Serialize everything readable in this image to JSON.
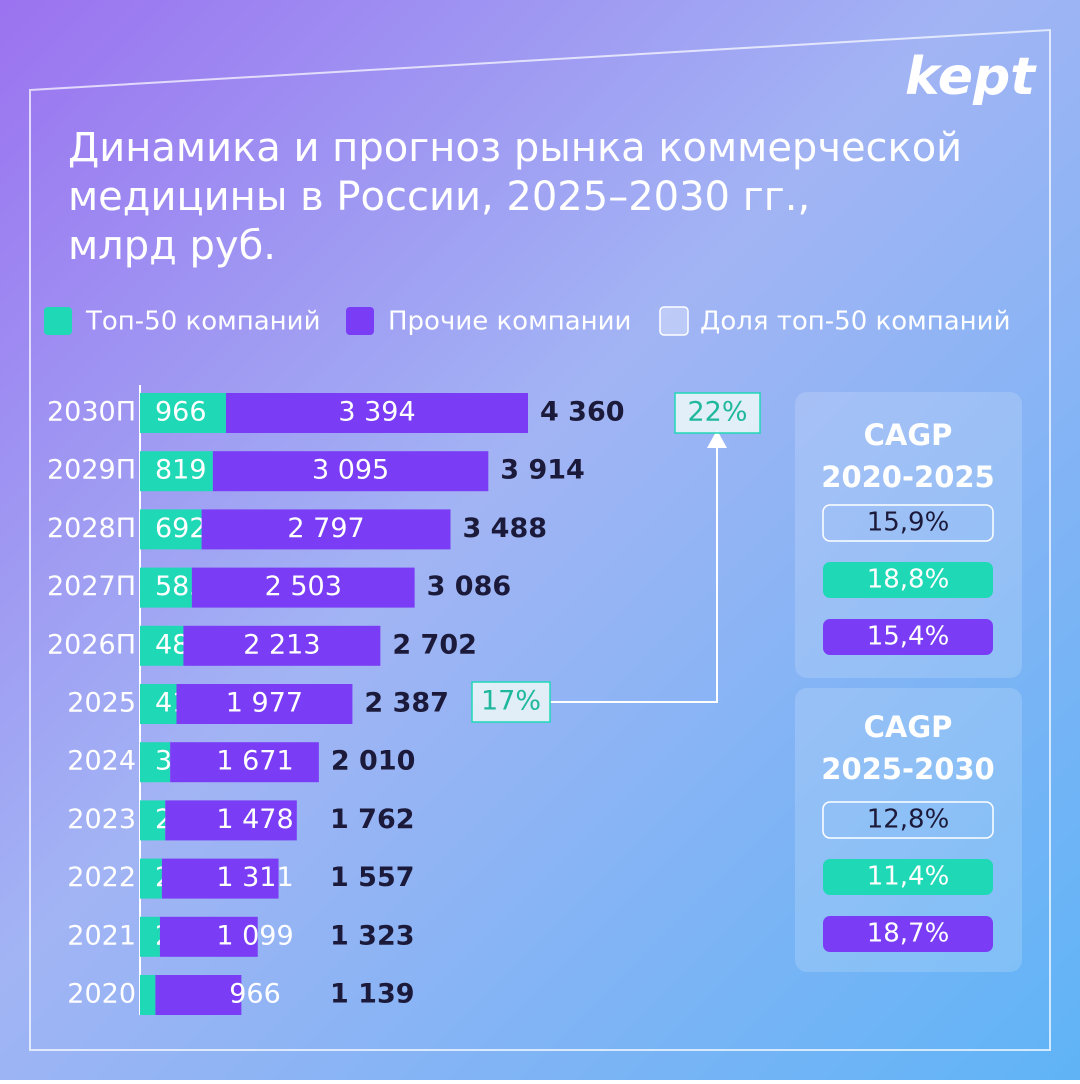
{
  "chart_data": {
    "type": "bar",
    "orientation": "horizontal",
    "stacked": true,
    "brand": "kept",
    "title": [
      "Динамика и прогноз рынка коммерческой",
      "медицины в России, 2025–2030 гг.,",
      "млрд руб."
    ],
    "categories": [
      "2030П",
      "2029П",
      "2028П",
      "2027П",
      "2026П",
      "2025",
      "2024",
      "2023",
      "2022",
      "2021",
      "2020"
    ],
    "series": [
      {
        "name": "Топ-50 компаний",
        "color": "#1fd8b6",
        "values": [
          966,
          819,
          692,
          583,
          488,
          410,
          339,
          284,
          246,
          224,
          173
        ]
      },
      {
        "name": "Прочие компании",
        "color": "#7a3cf4",
        "values": [
          3394,
          3095,
          2797,
          2503,
          2213,
          1977,
          1671,
          1478,
          1311,
          1099,
          966
        ],
        "value_labels": [
          "3 394",
          "3 095",
          "2 797",
          "2 503",
          "2 213",
          "1 977",
          "1 671",
          "1 478",
          "1 311",
          "1 099",
          "966"
        ]
      }
    ],
    "totals": {
      "values": [
        4360,
        3914,
        3488,
        3086,
        2702,
        2387,
        2010,
        1762,
        1557,
        1323,
        1139
      ],
      "value_labels": [
        "4 360",
        "3 914",
        "3 488",
        "3 086",
        "2 702",
        "2 387",
        "2 010",
        "1 762",
        "1 557",
        "1 323",
        "1 139"
      ]
    },
    "share_legend": "Доля топ-50 компаний",
    "top50_share": [
      {
        "value": 17,
        "label": "17%"
      },
      {
        "value": 22,
        "label": "22%"
      }
    ],
    "cagr": [
      {
        "title": "CAGP",
        "period": "2020-2025",
        "items": [
          {
            "value": 15.9,
            "label": "15,9%"
          },
          {
            "value": 18.8,
            "label": "18,8%"
          },
          {
            "value": 15.4,
            "label": "15,4%"
          }
        ]
      },
      {
        "title": "CAGP",
        "period": "2025-2030",
        "items": [
          {
            "value": 12.8,
            "label": "12,8%"
          },
          {
            "value": 11.4,
            "label": "11,4%"
          },
          {
            "value": 18.7,
            "label": "18,7%"
          }
        ]
      }
    ]
  }
}
